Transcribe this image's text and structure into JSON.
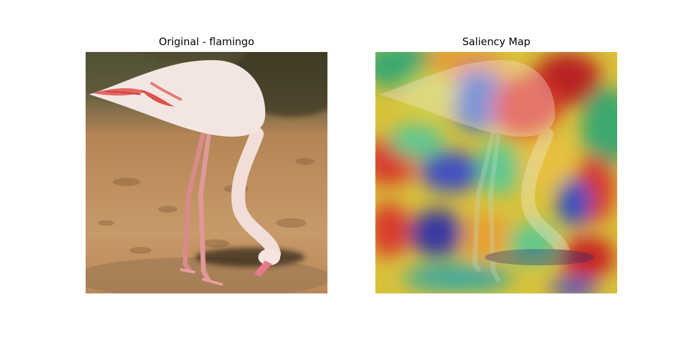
{
  "figure": {
    "left_panel": {
      "title": "Original - flamingo"
    },
    "right_panel": {
      "title": "Saliency Map"
    }
  }
}
